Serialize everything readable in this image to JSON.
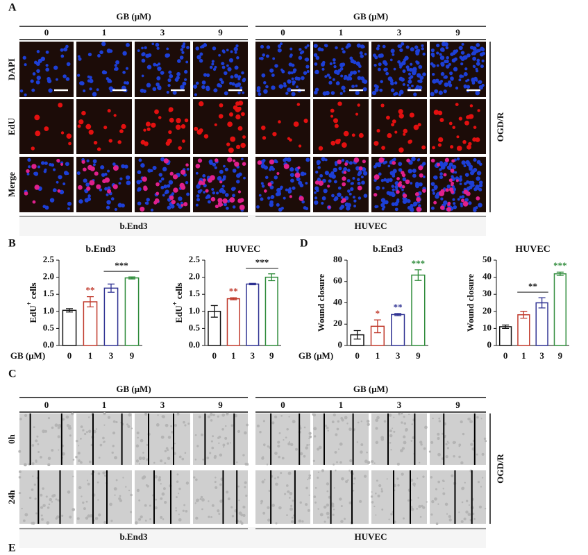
{
  "panel_labels": {
    "a": "A",
    "b": "B",
    "c": "C",
    "d": "D",
    "e": "E"
  },
  "panel_a": {
    "group_header": "GB (μM)",
    "doses": [
      "0",
      "1",
      "3",
      "9"
    ],
    "rows": [
      "DAPI",
      "EdU",
      "Merge"
    ],
    "side_label": "OGD/R",
    "cell_lines": [
      "b.End3",
      "HUVEC"
    ]
  },
  "chart_data": [
    {
      "type": "bar",
      "title": "b.End3",
      "y_label": "EdU",
      "y_label_sup": "+",
      "y_label_suffix": "cells",
      "x_label": "GB (μM)",
      "categories": [
        "0",
        "1",
        "3",
        "9"
      ],
      "values": [
        1.03,
        1.28,
        1.68,
        1.98
      ],
      "errors": [
        0.05,
        0.15,
        0.12,
        0.03
      ],
      "colors": [
        "#111111",
        "#c0392b",
        "#2e3192",
        "#2e8b3a"
      ],
      "significance": [
        null,
        "**",
        null,
        null
      ],
      "bracket": {
        "text": "***",
        "from": 2,
        "to": 3
      },
      "ylim": [
        0,
        2.5
      ],
      "yticks": [
        {
          "value": 0,
          "label": "0.0"
        },
        0.5,
        {
          "value": 1,
          "label": "1.0"
        },
        1.5,
        {
          "value": 2,
          "label": "2.0"
        },
        2.5
      ]
    },
    {
      "type": "bar",
      "title": "HUVEC",
      "y_label": "EdU",
      "y_label_sup": "+",
      "y_label_suffix": "cells",
      "categories": [
        "0",
        "1",
        "3",
        "9"
      ],
      "values": [
        1.0,
        1.37,
        1.8,
        2.0
      ],
      "errors": [
        0.17,
        0.03,
        0.02,
        0.1
      ],
      "colors": [
        "#111111",
        "#c0392b",
        "#2e3192",
        "#2e8b3a"
      ],
      "significance": [
        null,
        "**",
        null,
        null
      ],
      "bracket": {
        "text": "***",
        "from": 2,
        "to": 3
      },
      "ylim": [
        0,
        2.5
      ],
      "yticks": [
        {
          "value": 0,
          "label": "0.0"
        },
        0.5,
        {
          "value": 1,
          "label": "1.0"
        },
        1.5,
        {
          "value": 2,
          "label": "2.0"
        },
        2.5
      ]
    },
    {
      "type": "bar",
      "title": "b.End3",
      "y_label": "Wound closure",
      "x_label": "GB (μM)",
      "categories": [
        "0",
        "1",
        "3",
        "9"
      ],
      "values": [
        10,
        18,
        29,
        66
      ],
      "errors": [
        4,
        6,
        1,
        5
      ],
      "colors": [
        "#111111",
        "#c0392b",
        "#2e3192",
        "#2e8b3a"
      ],
      "significance": [
        null,
        "*",
        "**",
        "***"
      ],
      "ylim": [
        0,
        80
      ],
      "yticks": [
        0,
        20,
        40,
        60,
        80
      ]
    },
    {
      "type": "bar",
      "title": "HUVEC",
      "y_label": "Wound closure",
      "categories": [
        "0",
        "1",
        "3",
        "9"
      ],
      "values": [
        11,
        18,
        25,
        42
      ],
      "errors": [
        1,
        2,
        3,
        1
      ],
      "colors": [
        "#111111",
        "#c0392b",
        "#2e3192",
        "#2e8b3a"
      ],
      "significance": [
        null,
        null,
        null,
        "***"
      ],
      "bracket": {
        "text": "**",
        "from": 1,
        "to": 2
      },
      "ylim": [
        0,
        50
      ],
      "yticks": [
        0,
        10,
        20,
        30,
        40,
        50
      ]
    }
  ],
  "panel_c": {
    "group_header": "GB (μM)",
    "doses": [
      "0",
      "1",
      "3",
      "9"
    ],
    "rows": [
      "0h",
      "24h"
    ],
    "side_label": "OGD/R",
    "cell_lines": [
      "b.End3",
      "HUVEC"
    ]
  }
}
